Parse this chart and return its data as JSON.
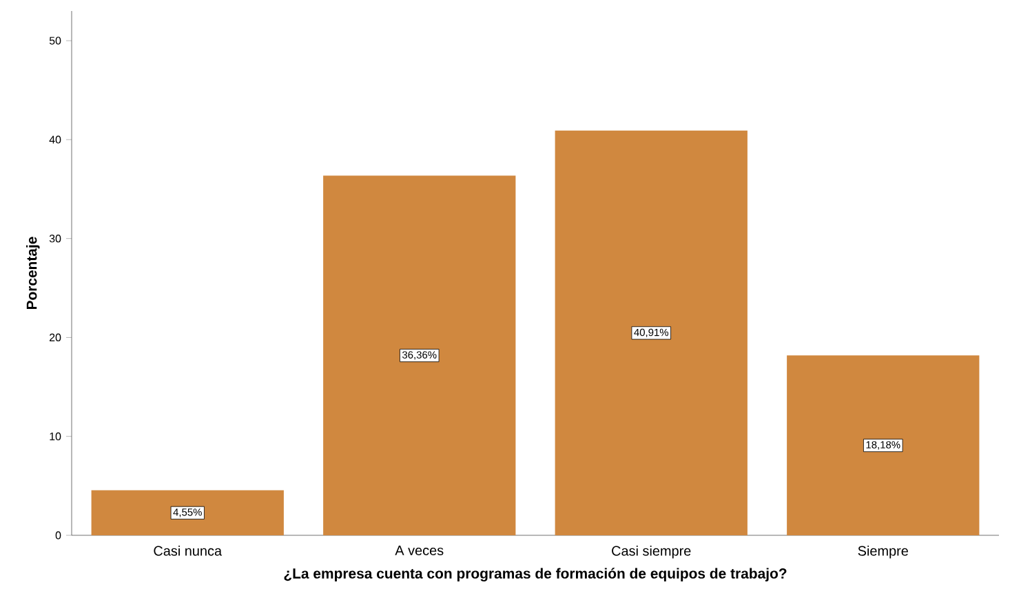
{
  "chart_data": {
    "type": "bar",
    "xlabel": "¿La empresa cuenta con programas de formación de equipos de trabajo?",
    "ylabel": "Porcentaje",
    "categories": [
      "Casi nunca",
      "A veces",
      "Casi siempre",
      "Siempre"
    ],
    "values": [
      4.55,
      36.36,
      40.91,
      18.18
    ],
    "value_labels": [
      "4,55%",
      "36,36%",
      "40,91%",
      "18,18%"
    ],
    "color": "#d0883f",
    "ylim": [
      0,
      53
    ],
    "yticks": [
      0,
      10,
      20,
      30,
      40,
      50
    ],
    "grid": false
  }
}
